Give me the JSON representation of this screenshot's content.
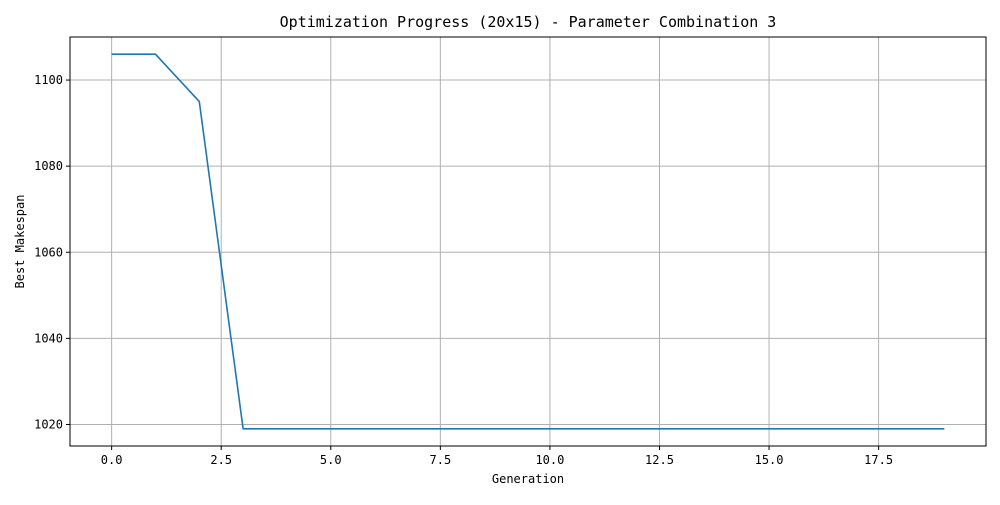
{
  "chart_data": {
    "type": "line",
    "title": "Optimization Progress (20x15) - Parameter Combination 3",
    "xlabel": "Generation",
    "ylabel": "Best Makespan",
    "xlim": [
      -0.95,
      19.95
    ],
    "ylim": [
      1015,
      1110
    ],
    "xticks": [
      0.0,
      2.5,
      5.0,
      7.5,
      10.0,
      12.5,
      15.0,
      17.5
    ],
    "xtick_labels": [
      "0.0",
      "2.5",
      "5.0",
      "7.5",
      "10.0",
      "12.5",
      "15.0",
      "17.5"
    ],
    "yticks": [
      1020,
      1040,
      1060,
      1080,
      1100
    ],
    "ytick_labels": [
      "1020",
      "1040",
      "1060",
      "1080",
      "1100"
    ],
    "grid": true,
    "line_color": "#1f77b4",
    "grid_color": "#b0b0b0",
    "series": [
      {
        "x": [
          0,
          1,
          2,
          3,
          4,
          5,
          6,
          7,
          8,
          9,
          10,
          11,
          12,
          13,
          14,
          15,
          16,
          17,
          18,
          19
        ],
        "values": [
          1106,
          1106,
          1095,
          1019,
          1019,
          1019,
          1019,
          1019,
          1019,
          1019,
          1019,
          1019,
          1019,
          1019,
          1019,
          1019,
          1019,
          1019,
          1019,
          1019
        ]
      }
    ]
  }
}
